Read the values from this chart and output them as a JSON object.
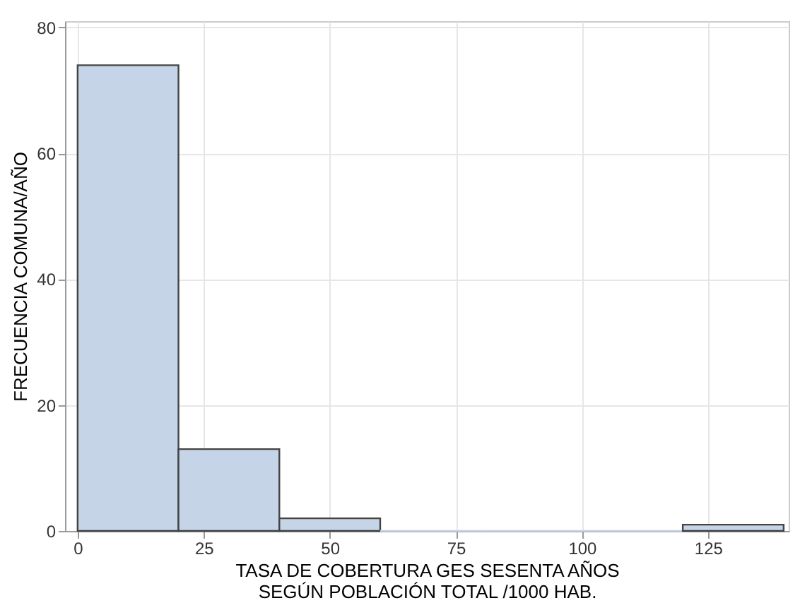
{
  "chart_data": {
    "type": "histogram",
    "xlabel": "TASA DE COBERTURA GES SESENTA AÑOS\nSEGÚN POBLACIÓN TOTAL /1000 HAB.",
    "ylabel": "FRECUENCIA COMUNA/AÑO",
    "bins": [
      0,
      20,
      40,
      60,
      80,
      100,
      120,
      140
    ],
    "values": [
      74,
      13,
      2,
      0,
      0,
      0,
      1
    ],
    "color": "#c5d4e6",
    "xlim": [
      -2.5,
      141
    ],
    "xticks": [
      0,
      25,
      50,
      75,
      100,
      125
    ],
    "ylim": [
      0,
      81
    ],
    "yticks": [
      0,
      20,
      40,
      60,
      80
    ],
    "grid": true
  }
}
